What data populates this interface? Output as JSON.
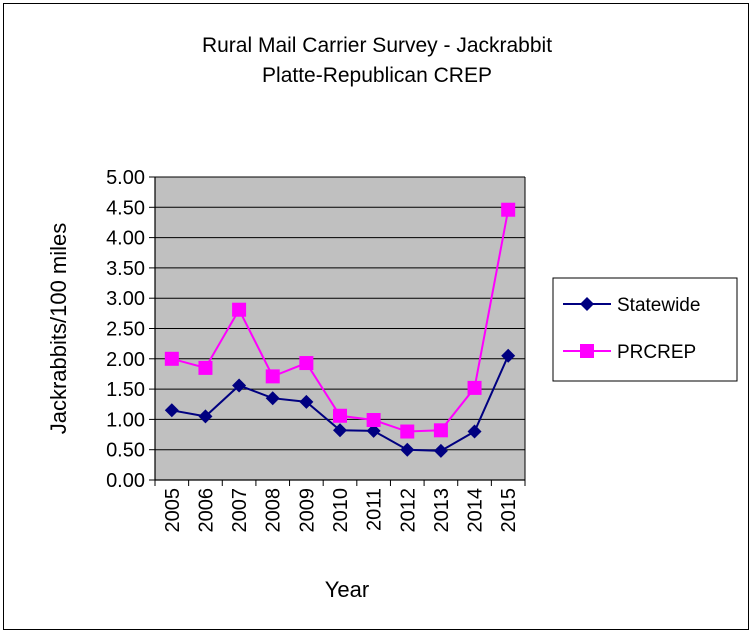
{
  "chart_data": {
    "type": "line",
    "title_line1": "Rural Mail Carrier Survey - Jackrabbit",
    "title_line2": "Platte-Republican CREP",
    "xlabel": "Year",
    "ylabel": "Jackrabbits/100 miles",
    "ylim": [
      0,
      5
    ],
    "ytick_labels": [
      "0.00",
      "0.50",
      "1.00",
      "1.50",
      "2.00",
      "2.50",
      "3.00",
      "3.50",
      "4.00",
      "4.50",
      "5.00"
    ],
    "grid": "horizontal",
    "legend_position": "right",
    "plot_background": "#c0c0c0",
    "categories": [
      "2005",
      "2006",
      "2007",
      "2008",
      "2009",
      "2010",
      "2011",
      "2012",
      "2013",
      "2014",
      "2015"
    ],
    "series": [
      {
        "name": "Statewide",
        "color": "#000080",
        "marker": "diamond",
        "values": [
          1.15,
          1.05,
          1.56,
          1.35,
          1.29,
          0.82,
          0.81,
          0.5,
          0.48,
          0.8,
          2.05
        ]
      },
      {
        "name": "PRCREP",
        "color": "#ff00ff",
        "marker": "square",
        "values": [
          2.0,
          1.85,
          2.81,
          1.71,
          1.93,
          1.06,
          0.99,
          0.8,
          0.82,
          1.52,
          4.46
        ]
      }
    ]
  }
}
